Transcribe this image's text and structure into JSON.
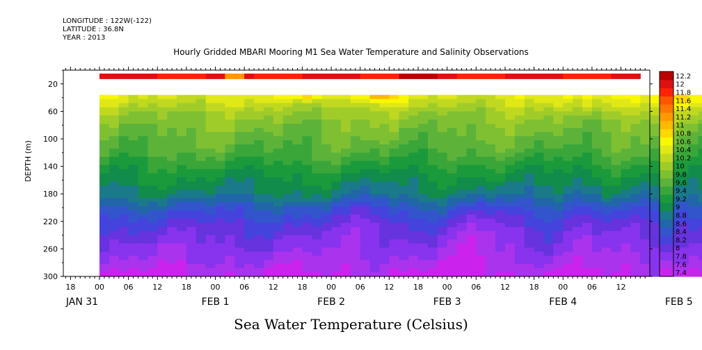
{
  "header": {
    "longitude": "LONGITUDE : 122W(-122)",
    "latitude": "LATITUDE : 36.8N",
    "year": "YEAR : 2013"
  },
  "chart_data": {
    "type": "heatmap",
    "title": "Hourly Gridded MBARI Mooring M1 Sea Water Temperature and Salinity Observations",
    "bottom_title": "Sea Water Temperature (Celsius)",
    "ylabel": "DEPTH (m)",
    "y_axis": {
      "ylim": [
        300,
        0
      ],
      "ticks": [
        20,
        60,
        100,
        140,
        180,
        220,
        260,
        300
      ],
      "tick_labels": [
        "20",
        "60",
        "100",
        "140",
        "180",
        "220",
        "260",
        "300"
      ],
      "inverted": true
    },
    "x_axis": {
      "hour_ticks": [
        "18",
        "00",
        "06",
        "12",
        "18",
        "00",
        "06",
        "12",
        "18",
        "00",
        "06",
        "12",
        "18",
        "00",
        "06",
        "12",
        "18",
        "00",
        "06",
        "12"
      ],
      "day_labels": [
        "JAN 31",
        "FEB  1",
        "FEB  2",
        "FEB  3",
        "FEB  4",
        "FEB  5"
      ]
    },
    "colorbar": {
      "levels": [
        7.4,
        7.6,
        7.8,
        8,
        8.2,
        8.4,
        8.6,
        8.8,
        9,
        9.2,
        9.4,
        9.6,
        9.8,
        10,
        10.2,
        10.4,
        10.6,
        10.8,
        11,
        11.2,
        11.4,
        11.6,
        11.8,
        12,
        12.2
      ],
      "labels": [
        "7.4",
        "7.6",
        "7.8",
        "8",
        "8.2",
        "8.4",
        "8.6",
        "8.8",
        "9",
        "9.2",
        "9.4",
        "9.6",
        "9.8",
        "10",
        "10.2",
        "10.4",
        "10.6",
        "10.8",
        "11",
        "11.2",
        "11.4",
        "11.6",
        "11.8",
        "12",
        "12.2"
      ],
      "colors": [
        "#cc22ee",
        "#aa33ee",
        "#8833ee",
        "#6633dd",
        "#4444dd",
        "#3355cc",
        "#2266aa",
        "#1a7a8a",
        "#128c4a",
        "#1b9a3c",
        "#3aa63a",
        "#5db33a",
        "#7fc033",
        "#a0cc2a",
        "#c0d820",
        "#e0e818",
        "#f8f800",
        "#ffd800",
        "#ffb800",
        "#ff9900",
        "#ff7700",
        "#ff5500",
        "#ff2200",
        "#dd1111",
        "#b80000"
      ]
    },
    "profile": {
      "depths": [
        36,
        50,
        60,
        80,
        100,
        120,
        140,
        160,
        180,
        200,
        220,
        240,
        260,
        280,
        300
      ],
      "temperatures": [
        10.5,
        10.3,
        10.1,
        9.9,
        9.75,
        9.6,
        9.35,
        9.15,
        8.95,
        8.55,
        8.25,
        8.05,
        7.9,
        7.75,
        7.55
      ]
    },
    "surface_20m": {
      "present_ranges_hours": [
        [
          0,
          111
        ],
        [
          150,
          198
        ]
      ],
      "temperature": 12.0
    },
    "data_start_hour": 0,
    "data_end_hour": 198
  }
}
